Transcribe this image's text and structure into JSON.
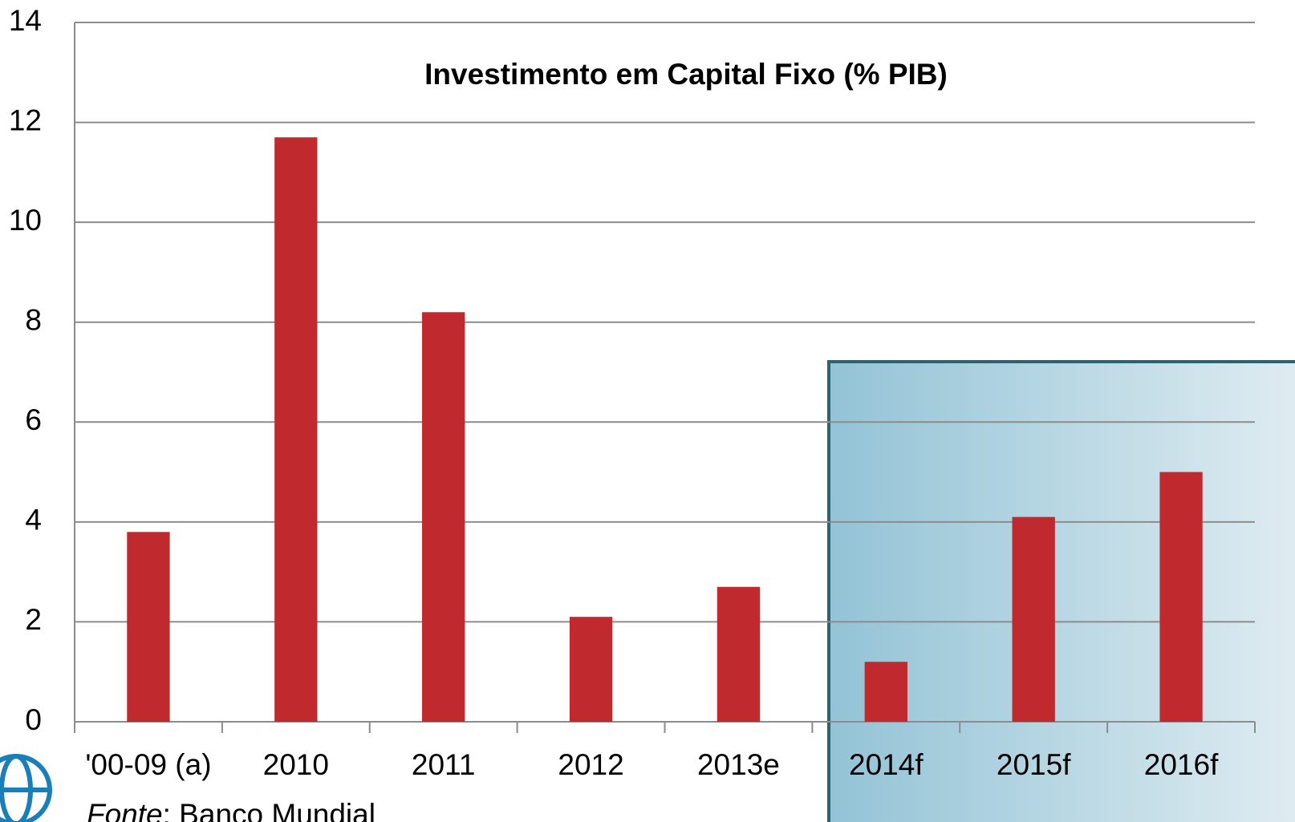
{
  "chart_data": {
    "type": "bar",
    "title": "Investimento em Capital Fixo (% PIB)",
    "categories": [
      "'00-09 (a)",
      "2010",
      "2011",
      "2012",
      "2013e",
      "2014f",
      "2015f",
      "2016f"
    ],
    "values": [
      3.8,
      11.7,
      8.2,
      2.1,
      2.7,
      1.2,
      4.1,
      5.0
    ],
    "color": "#c0292e",
    "ylim": [
      0,
      14
    ],
    "yticks": [
      0,
      2,
      4,
      6,
      8,
      10,
      12,
      14
    ],
    "grid": true,
    "source_label": "Fonte",
    "source": ": Banco Mundial"
  }
}
